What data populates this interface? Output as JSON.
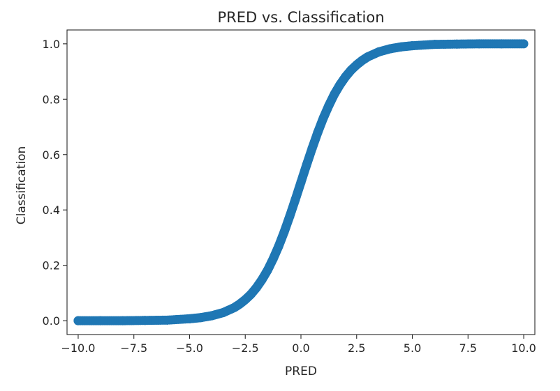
{
  "chart_data": {
    "type": "scatter",
    "title": "PRED vs. Classification",
    "xlabel": "PRED",
    "ylabel": "Classification",
    "xlim": [
      -10.5,
      10.5
    ],
    "ylim": [
      -0.05,
      1.05
    ],
    "xticks": [
      -10.0,
      -7.5,
      -5.0,
      -2.5,
      0.0,
      2.5,
      5.0,
      7.5,
      10.0
    ],
    "xtick_labels": [
      "−10.0",
      "−7.5",
      "−5.0",
      "−2.5",
      "0.0",
      "2.5",
      "5.0",
      "7.5",
      "10.0"
    ],
    "yticks": [
      0.0,
      0.2,
      0.4,
      0.6,
      0.8,
      1.0
    ],
    "ytick_labels": [
      "0.0",
      "0.2",
      "0.4",
      "0.6",
      "0.8",
      "1.0"
    ],
    "grid": false,
    "legend": false,
    "color": "#1f77b4",
    "series": [
      {
        "x": [
          -10,
          -9,
          -8,
          -7,
          -6,
          -5,
          -4.5,
          -4,
          -3.5,
          -3,
          -2.75,
          -2.5,
          -2.25,
          -2,
          -1.75,
          -1.5,
          -1.25,
          -1,
          -0.75,
          -0.5,
          -0.25,
          0,
          0.25,
          0.5,
          0.75,
          1,
          1.25,
          1.5,
          1.75,
          2,
          2.25,
          2.5,
          2.75,
          3,
          3.5,
          4,
          4.5,
          5,
          6,
          7,
          8,
          9,
          10
        ],
        "y": [
          0.0,
          0.0,
          0.0,
          0.001,
          0.002,
          0.007,
          0.011,
          0.018,
          0.029,
          0.047,
          0.06,
          0.076,
          0.095,
          0.119,
          0.148,
          0.182,
          0.223,
          0.269,
          0.321,
          0.378,
          0.438,
          0.5,
          0.562,
          0.622,
          0.679,
          0.731,
          0.777,
          0.818,
          0.852,
          0.881,
          0.905,
          0.924,
          0.94,
          0.953,
          0.971,
          0.982,
          0.989,
          0.993,
          0.998,
          0.999,
          1.0,
          1.0,
          1.0
        ]
      }
    ]
  }
}
